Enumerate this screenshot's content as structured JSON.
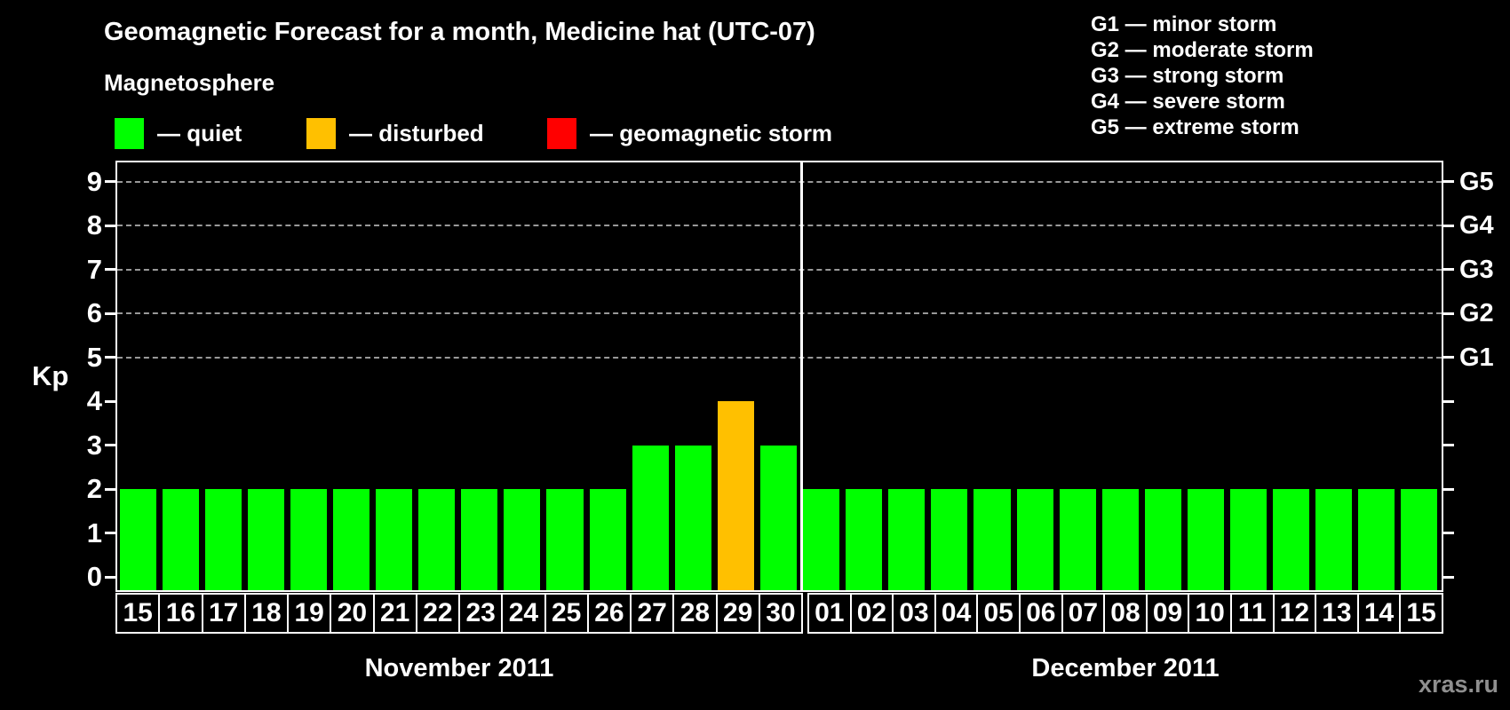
{
  "header": {
    "legend_title": "Magnetosphere",
    "legend": [
      {
        "key": "quiet",
        "label": "— quiet",
        "color": "#00FF00"
      },
      {
        "key": "disturbed",
        "label": "— disturbed",
        "color": "#FFC000"
      },
      {
        "key": "storm",
        "label": "— geomagnetic storm",
        "color": "#FF0000"
      }
    ],
    "storm_scale": [
      {
        "label": "G1 — minor storm"
      },
      {
        "label": "G2 — moderate storm"
      },
      {
        "label": "G3 — strong storm"
      },
      {
        "label": "G4 — severe storm"
      },
      {
        "label": "G5 — extreme storm"
      }
    ]
  },
  "chart_data": {
    "type": "bar",
    "title": "Geomagnetic Forecast for a month, Medicine hat (UTC-07)",
    "ylabel": "Kp",
    "ylim": [
      0,
      9.6
    ],
    "yticks": [
      0,
      1,
      2,
      3,
      4,
      5,
      6,
      7,
      8,
      9
    ],
    "gridlines_kp": [
      5,
      6,
      7,
      8,
      9
    ],
    "grid": true,
    "right_axis": [
      {
        "kp": 5,
        "label": "G1"
      },
      {
        "kp": 6,
        "label": "G2"
      },
      {
        "kp": 7,
        "label": "G3"
      },
      {
        "kp": 8,
        "label": "G4"
      },
      {
        "kp": 9,
        "label": "G5"
      }
    ],
    "status_colors": {
      "quiet": "#00FF00",
      "disturbed": "#FFC000",
      "storm": "#FF0000"
    },
    "months": [
      {
        "name": "November 2011",
        "days": [
          "15",
          "16",
          "17",
          "18",
          "19",
          "20",
          "21",
          "22",
          "23",
          "24",
          "25",
          "26",
          "27",
          "28",
          "29",
          "30"
        ],
        "values": [
          2,
          2,
          2,
          2,
          2,
          2,
          2,
          2,
          2,
          2,
          2,
          2,
          3,
          3,
          4,
          3
        ],
        "statuses": [
          "quiet",
          "quiet",
          "quiet",
          "quiet",
          "quiet",
          "quiet",
          "quiet",
          "quiet",
          "quiet",
          "quiet",
          "quiet",
          "quiet",
          "quiet",
          "quiet",
          "disturbed",
          "quiet"
        ]
      },
      {
        "name": "December 2011",
        "days": [
          "01",
          "02",
          "03",
          "04",
          "05",
          "06",
          "07",
          "08",
          "09",
          "10",
          "11",
          "12",
          "13",
          "14",
          "15"
        ],
        "values": [
          2,
          2,
          2,
          2,
          2,
          2,
          2,
          2,
          2,
          2,
          2,
          2,
          2,
          2,
          2
        ],
        "statuses": [
          "quiet",
          "quiet",
          "quiet",
          "quiet",
          "quiet",
          "quiet",
          "quiet",
          "quiet",
          "quiet",
          "quiet",
          "quiet",
          "quiet",
          "quiet",
          "quiet",
          "quiet"
        ]
      }
    ]
  },
  "footer": {
    "watermark": "xras.ru"
  }
}
